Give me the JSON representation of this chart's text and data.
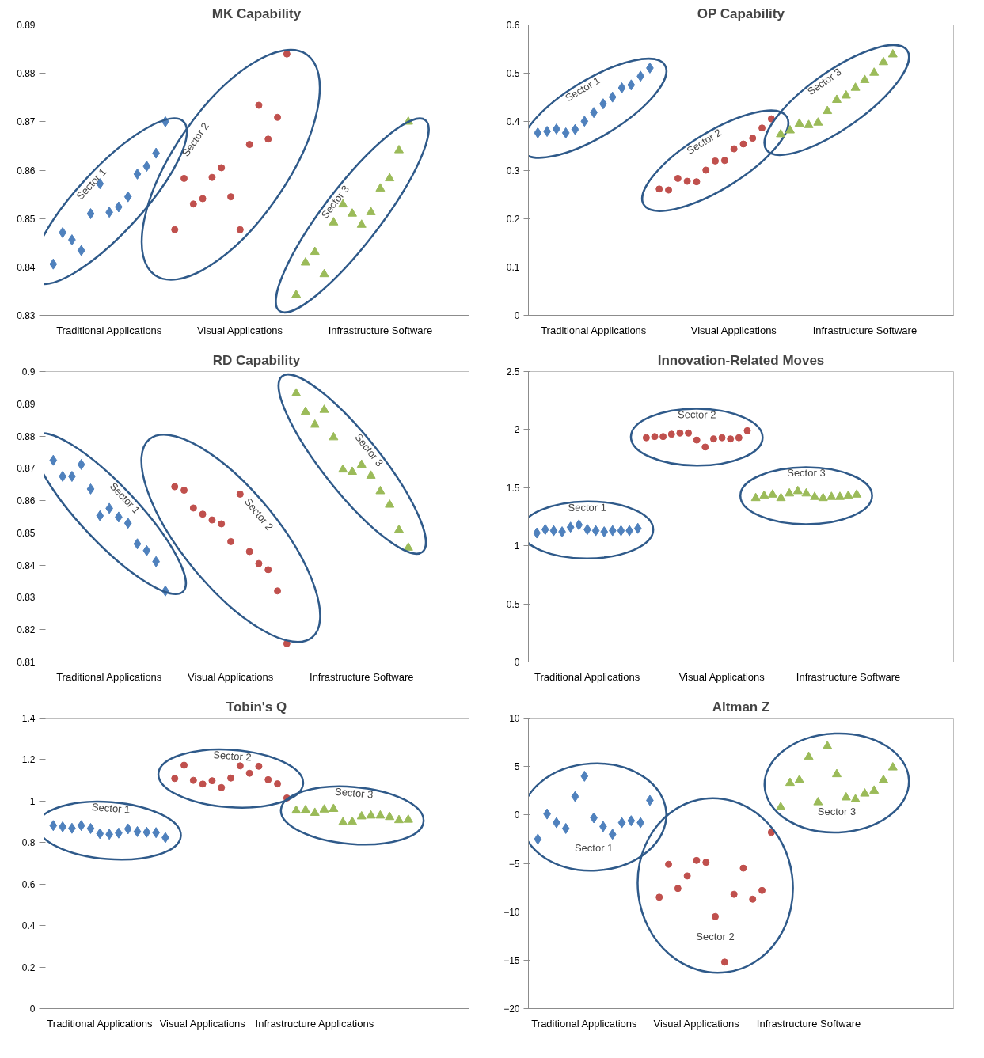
{
  "chart_data": [
    {
      "type": "scatter",
      "title": "MK Capability",
      "categories": [
        null,
        null,
        null,
        null,
        null,
        null,
        "Traditional Applications",
        null,
        null,
        null,
        null,
        null,
        null,
        null,
        null,
        null,
        null,
        null,
        null,
        null,
        "Visual Applications",
        null,
        null,
        null,
        null,
        null,
        null,
        null,
        null,
        null,
        null,
        null,
        null,
        null,
        null,
        "Infrastructure Software",
        null,
        null,
        null,
        null,
        null,
        null,
        null,
        null,
        null
      ],
      "ylim": [
        0.83,
        0.89
      ],
      "yticks": [
        0.83,
        0.84,
        0.85,
        0.86,
        0.87,
        0.88,
        0.89
      ],
      "series": [
        {
          "name": "Sector 1",
          "color": "#4f81bd",
          "marker": "diamond",
          "values": [
            0.8406,
            0.8471,
            0.8456,
            0.8434,
            0.851,
            0.8572,
            0.8513,
            0.8524,
            0.8545,
            0.8592,
            0.8608,
            0.8635,
            0.87,
            null,
            null,
            null,
            null,
            null,
            null,
            null,
            null,
            null,
            null,
            null,
            null,
            null,
            null,
            null,
            null,
            null,
            null,
            null,
            null,
            null,
            null,
            null,
            null,
            null,
            null,
            null,
            null,
            null,
            null,
            null,
            null
          ]
        },
        {
          "name": "Sector 2",
          "color": "#c0504d",
          "marker": "circle",
          "values": [
            null,
            null,
            null,
            null,
            null,
            null,
            null,
            null,
            null,
            null,
            null,
            null,
            null,
            0.8477,
            0.8583,
            0.853,
            0.8541,
            0.8585,
            0.8605,
            0.8545,
            0.8477,
            0.8653,
            0.8734,
            0.8664,
            0.8709,
            0.884,
            null,
            null,
            null,
            null,
            null,
            null,
            null,
            null,
            null,
            null,
            null,
            null,
            null,
            null,
            null,
            null,
            null,
            null,
            null
          ]
        },
        {
          "name": "Sector 3",
          "color": "#9bbb59",
          "marker": "triangle",
          "values": [
            null,
            null,
            null,
            null,
            null,
            null,
            null,
            null,
            null,
            null,
            null,
            null,
            null,
            null,
            null,
            null,
            null,
            null,
            null,
            null,
            null,
            null,
            null,
            null,
            null,
            null,
            0.8342,
            0.8409,
            0.8431,
            0.8385,
            0.8492,
            0.8529,
            0.851,
            0.8487,
            0.8513,
            0.8562,
            0.8583,
            0.8641,
            0.87,
            null,
            null,
            null,
            null,
            null,
            null
          ]
        }
      ]
    },
    {
      "type": "scatter",
      "title": "OP Capability",
      "categories": [
        null,
        null,
        null,
        null,
        null,
        null,
        "Traditional Applications",
        null,
        null,
        null,
        null,
        null,
        null,
        null,
        null,
        null,
        null,
        null,
        null,
        null,
        null,
        "Visual Applications",
        null,
        null,
        null,
        null,
        null,
        null,
        null,
        null,
        null,
        null,
        null,
        null,
        null,
        "Infrastructure Software",
        null,
        null,
        null,
        null,
        null,
        null,
        null,
        null,
        null
      ],
      "ylim": [
        0,
        0.6
      ],
      "yticks": [
        0,
        0.1,
        0.2,
        0.3,
        0.4,
        0.5,
        0.6
      ],
      "series": [
        {
          "name": "Sector 1",
          "color": "#4f81bd",
          "marker": "diamond",
          "values": [
            0.377,
            0.38,
            0.385,
            0.377,
            0.384,
            0.401,
            0.419,
            0.437,
            0.451,
            0.47,
            0.476,
            0.494,
            0.511,
            null,
            null,
            null,
            null,
            null,
            null,
            null,
            null,
            null,
            null,
            null,
            null,
            null,
            null,
            null,
            null,
            null,
            null,
            null,
            null,
            null,
            null,
            null,
            null,
            null,
            null,
            null,
            null,
            null,
            null,
            null,
            null
          ]
        },
        {
          "name": "Sector 2",
          "color": "#c0504d",
          "marker": "circle",
          "values": [
            null,
            null,
            null,
            null,
            null,
            null,
            null,
            null,
            null,
            null,
            null,
            null,
            null,
            0.261,
            0.259,
            0.283,
            0.277,
            0.276,
            0.3,
            0.319,
            0.32,
            0.344,
            0.354,
            0.366,
            0.387,
            0.406,
            null,
            null,
            null,
            null,
            null,
            null,
            null,
            null,
            null,
            null,
            null,
            null,
            null,
            null,
            null,
            null,
            null,
            null,
            null
          ]
        },
        {
          "name": "Sector 3",
          "color": "#9bbb59",
          "marker": "triangle",
          "values": [
            null,
            null,
            null,
            null,
            null,
            null,
            null,
            null,
            null,
            null,
            null,
            null,
            null,
            null,
            null,
            null,
            null,
            null,
            null,
            null,
            null,
            null,
            null,
            null,
            null,
            null,
            0.374,
            0.382,
            0.396,
            0.393,
            0.398,
            0.422,
            0.445,
            0.454,
            0.47,
            0.486,
            0.501,
            0.523,
            0.539,
            null,
            null,
            null,
            null,
            null,
            null
          ]
        }
      ]
    },
    {
      "type": "scatter",
      "title": "RD Capability",
      "categories": [
        null,
        null,
        null,
        null,
        null,
        null,
        "Traditional Applications",
        null,
        null,
        null,
        null,
        null,
        null,
        null,
        null,
        null,
        null,
        null,
        null,
        "Visual Applications",
        null,
        null,
        null,
        null,
        null,
        null,
        null,
        null,
        null,
        null,
        null,
        null,
        null,
        "Infrastructure Software",
        null,
        null,
        null,
        null,
        null,
        null,
        null,
        null,
        null,
        null,
        null
      ],
      "ylim": [
        0.81,
        0.9
      ],
      "yticks": [
        0.81,
        0.82,
        0.83,
        0.84,
        0.85,
        0.86,
        0.87,
        0.88,
        0.89,
        0.9
      ],
      "series": [
        {
          "name": "Sector 1",
          "color": "#4f81bd",
          "marker": "diamond",
          "values": [
            0.8725,
            0.8675,
            0.8675,
            0.8712,
            0.8636,
            0.8553,
            0.8576,
            0.8549,
            0.853,
            0.8466,
            0.8445,
            0.8411,
            0.832,
            null,
            null,
            null,
            null,
            null,
            null,
            null,
            null,
            null,
            null,
            null,
            null,
            null,
            null,
            null,
            null,
            null,
            null,
            null,
            null,
            null,
            null,
            null,
            null,
            null,
            null,
            null,
            null,
            null,
            null,
            null,
            null
          ]
        },
        {
          "name": "Sector 2",
          "color": "#c0504d",
          "marker": "circle",
          "values": [
            null,
            null,
            null,
            null,
            null,
            null,
            null,
            null,
            null,
            null,
            null,
            null,
            null,
            0.8643,
            0.8632,
            0.8577,
            0.8558,
            0.854,
            0.8528,
            0.8473,
            0.862,
            0.8442,
            0.8405,
            0.8386,
            0.832,
            0.8157,
            null,
            null,
            null,
            null,
            null,
            null,
            null,
            null,
            null,
            null,
            null,
            null,
            null,
            null,
            null,
            null,
            null,
            null,
            null
          ]
        },
        {
          "name": "Sector 3",
          "color": "#9bbb59",
          "marker": "triangle",
          "values": [
            null,
            null,
            null,
            null,
            null,
            null,
            null,
            null,
            null,
            null,
            null,
            null,
            null,
            null,
            null,
            null,
            null,
            null,
            null,
            null,
            null,
            null,
            null,
            null,
            null,
            null,
            0.8932,
            0.8875,
            0.8835,
            0.8881,
            0.8796,
            0.8696,
            0.8689,
            0.8711,
            0.8677,
            0.8629,
            0.8587,
            0.8509,
            0.8454,
            null,
            null,
            null,
            null,
            null,
            null
          ]
        }
      ]
    },
    {
      "type": "scatter",
      "title": "Innovation-Related Moves",
      "categories": [
        null,
        null,
        null,
        null,
        null,
        null,
        "Traditional Applications",
        null,
        null,
        null,
        null,
        null,
        null,
        null,
        null,
        null,
        null,
        null,
        null,
        null,
        null,
        null,
        "Visual Applications",
        null,
        null,
        null,
        null,
        null,
        null,
        null,
        null,
        null,
        null,
        null,
        null,
        null,
        null,
        "Infrastructure Software",
        null,
        null,
        null,
        null,
        null,
        null,
        null,
        null,
        null,
        null,
        null,
        null
      ],
      "ylim": [
        0,
        2.5
      ],
      "yticks": [
        0,
        0.5,
        1,
        1.5,
        2,
        2.5
      ],
      "series": [
        {
          "name": "Sector 1",
          "color": "#4f81bd",
          "marker": "diamond",
          "values": [
            1.11,
            1.14,
            1.13,
            1.12,
            1.16,
            1.18,
            1.14,
            1.13,
            1.12,
            1.13,
            1.13,
            1.13,
            1.15,
            null,
            null,
            null,
            null,
            null,
            null,
            null,
            null,
            null,
            null,
            null,
            null,
            null,
            null,
            null,
            null,
            null,
            null,
            null,
            null,
            null,
            null,
            null,
            null,
            null,
            null,
            null,
            null,
            null,
            null,
            null,
            null,
            null,
            null,
            null,
            null,
            null
          ]
        },
        {
          "name": "Sector 2",
          "color": "#c0504d",
          "marker": "circle",
          "values": [
            null,
            null,
            null,
            null,
            null,
            null,
            null,
            null,
            null,
            null,
            null,
            null,
            null,
            1.93,
            1.94,
            1.94,
            1.96,
            1.97,
            1.97,
            1.91,
            1.85,
            1.92,
            1.93,
            1.92,
            1.93,
            1.99,
            null,
            null,
            null,
            null,
            null,
            null,
            null,
            null,
            null,
            null,
            null,
            null,
            null,
            null,
            null,
            null,
            null,
            null,
            null,
            null,
            null,
            null,
            null,
            null
          ]
        },
        {
          "name": "Sector 3",
          "color": "#9bbb59",
          "marker": "triangle",
          "values": [
            null,
            null,
            null,
            null,
            null,
            null,
            null,
            null,
            null,
            null,
            null,
            null,
            null,
            null,
            null,
            null,
            null,
            null,
            null,
            null,
            null,
            null,
            null,
            null,
            null,
            null,
            1.41,
            1.43,
            1.44,
            1.41,
            1.45,
            1.47,
            1.45,
            1.42,
            1.41,
            1.42,
            1.42,
            1.43,
            1.44,
            null,
            null,
            null,
            null,
            null,
            null,
            null,
            null,
            null,
            null,
            null
          ]
        }
      ]
    },
    {
      "type": "scatter",
      "title": "Tobin's Q",
      "categories": [
        null,
        null,
        null,
        null,
        null,
        "Traditional Applications",
        null,
        null,
        null,
        null,
        null,
        null,
        null,
        null,
        null,
        null,
        "Visual Applications",
        null,
        null,
        null,
        null,
        null,
        null,
        null,
        null,
        null,
        null,
        null,
        "Infrastructure Applications",
        null,
        null,
        null,
        null,
        null,
        null,
        null,
        null,
        null,
        null,
        null,
        null,
        null,
        null,
        null,
        null
      ],
      "ylim": [
        0,
        1.4
      ],
      "yticks": [
        0,
        0.2,
        0.4,
        0.6,
        0.8,
        1,
        1.2,
        1.4
      ],
      "series": [
        {
          "name": "Sector 1",
          "color": "#4f81bd",
          "marker": "diamond",
          "values": [
            0.882,
            0.876,
            0.869,
            0.882,
            0.868,
            0.843,
            0.84,
            0.846,
            0.866,
            0.853,
            0.85,
            0.848,
            0.824,
            null,
            null,
            null,
            null,
            null,
            null,
            null,
            null,
            null,
            null,
            null,
            null,
            null,
            null,
            null,
            null,
            null,
            null,
            null,
            null,
            null,
            null,
            null,
            null,
            null,
            null,
            null,
            null,
            null,
            null,
            null,
            null
          ]
        },
        {
          "name": "Sector 2",
          "color": "#c0504d",
          "marker": "circle",
          "values": [
            null,
            null,
            null,
            null,
            null,
            null,
            null,
            null,
            null,
            null,
            null,
            null,
            null,
            1.109,
            1.173,
            1.1,
            1.082,
            1.098,
            1.065,
            1.111,
            1.17,
            1.134,
            1.168,
            1.103,
            1.083,
            1.015,
            null,
            null,
            null,
            null,
            null,
            null,
            null,
            null,
            null,
            null,
            null,
            null,
            null,
            null,
            null,
            null,
            null,
            null,
            null
          ]
        },
        {
          "name": "Sector 3",
          "color": "#9bbb59",
          "marker": "triangle",
          "values": [
            null,
            null,
            null,
            null,
            null,
            null,
            null,
            null,
            null,
            null,
            null,
            null,
            null,
            null,
            null,
            null,
            null,
            null,
            null,
            null,
            null,
            null,
            null,
            null,
            null,
            null,
            0.954,
            0.956,
            0.943,
            0.959,
            0.962,
            0.897,
            0.9,
            0.926,
            0.93,
            0.93,
            0.923,
            0.908,
            0.91,
            null,
            null,
            null,
            null,
            null,
            null
          ]
        }
      ]
    },
    {
      "type": "scatter",
      "title": "Altman Z",
      "categories": [
        null,
        null,
        null,
        null,
        null,
        "Traditional Applications",
        null,
        null,
        null,
        null,
        null,
        null,
        null,
        null,
        null,
        null,
        null,
        "Visual Applications",
        null,
        null,
        null,
        null,
        null,
        null,
        null,
        null,
        null,
        null,
        null,
        "Infrastructure Software",
        null,
        null,
        null,
        null,
        null,
        null,
        null,
        null,
        null,
        null,
        null,
        null,
        null,
        null,
        null
      ],
      "ylim": [
        -20,
        10
      ],
      "yticks": [
        -20,
        -15,
        -10,
        -5,
        0,
        5,
        10
      ],
      "series": [
        {
          "name": "Sector 1",
          "color": "#4f81bd",
          "marker": "diamond",
          "values": [
            -2.5,
            0.1,
            -0.8,
            -1.4,
            1.9,
            4.0,
            -0.3,
            -1.2,
            -2.0,
            -0.8,
            -0.6,
            -0.8,
            1.5,
            null,
            null,
            null,
            null,
            null,
            null,
            null,
            null,
            null,
            null,
            null,
            null,
            null,
            null,
            null,
            null,
            null,
            null,
            null,
            null,
            null,
            null,
            null,
            null,
            null,
            null,
            null,
            null,
            null,
            null,
            null,
            null
          ]
        },
        {
          "name": "Sector 2",
          "color": "#c0504d",
          "marker": "circle",
          "values": [
            null,
            null,
            null,
            null,
            null,
            null,
            null,
            null,
            null,
            null,
            null,
            null,
            null,
            -8.5,
            -5.1,
            -7.6,
            -6.3,
            -4.7,
            -4.9,
            -10.5,
            -15.2,
            -8.2,
            -5.5,
            -8.7,
            -7.8,
            -1.8,
            null,
            null,
            null,
            null,
            null,
            null,
            null,
            null,
            null,
            null,
            null,
            null,
            null,
            null,
            null,
            null,
            null,
            null,
            null
          ]
        },
        {
          "name": "Sector 3",
          "color": "#9bbb59",
          "marker": "triangle",
          "values": [
            null,
            null,
            null,
            null,
            null,
            null,
            null,
            null,
            null,
            null,
            null,
            null,
            null,
            null,
            null,
            null,
            null,
            null,
            null,
            null,
            null,
            null,
            null,
            null,
            null,
            null,
            0.8,
            3.3,
            3.6,
            6.0,
            1.3,
            7.1,
            4.2,
            1.8,
            1.6,
            2.2,
            2.5,
            3.6,
            4.9,
            null,
            null,
            null,
            null,
            null,
            null
          ]
        }
      ]
    }
  ]
}
